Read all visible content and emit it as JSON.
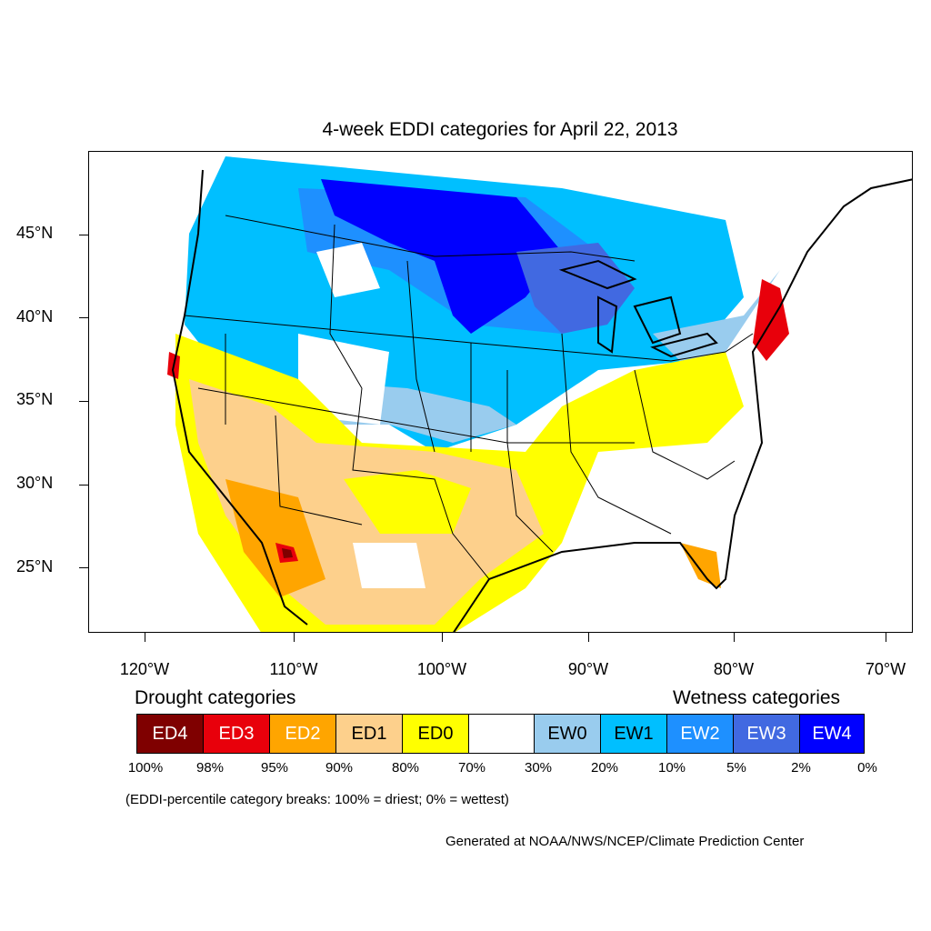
{
  "title": "4-week EDDI categories for April 22, 2013",
  "map": {
    "latitude_labels": [
      "45°N",
      "40°N",
      "35°N",
      "30°N",
      "25°N"
    ],
    "longitude_labels": [
      "120°W",
      "110°W",
      "100°W",
      "90°W",
      "80°W",
      "70°W"
    ]
  },
  "legend": {
    "drought_heading": "Drought categories",
    "wetness_heading": "Wetness categories",
    "categories": [
      {
        "label": "ED4",
        "color": "#7f0000",
        "text_color": "#ffffff"
      },
      {
        "label": "ED3",
        "color": "#e8000b",
        "text_color": "#ffffff"
      },
      {
        "label": "ED2",
        "color": "#ffa500",
        "text_color": "#ffffff"
      },
      {
        "label": "ED1",
        "color": "#fdd08c",
        "text_color": "#000000"
      },
      {
        "label": "ED0",
        "color": "#ffff00",
        "text_color": "#000000"
      },
      {
        "label": "",
        "color": "#ffffff",
        "text_color": "#000000"
      },
      {
        "label": "EW0",
        "color": "#99ccee",
        "text_color": "#000000"
      },
      {
        "label": "EW1",
        "color": "#00bfff",
        "text_color": "#000000"
      },
      {
        "label": "EW2",
        "color": "#1e90ff",
        "text_color": "#ffffff"
      },
      {
        "label": "EW3",
        "color": "#4169e1",
        "text_color": "#ffffff"
      },
      {
        "label": "EW4",
        "color": "#0000ff",
        "text_color": "#ffffff"
      }
    ],
    "percent_breaks": [
      "100%",
      "98%",
      "95%",
      "90%",
      "80%",
      "70%",
      "30%",
      "20%",
      "10%",
      "5%",
      "2%",
      "0%"
    ]
  },
  "note": "(EDDI-percentile category breaks: 100% = driest; 0% = wettest)",
  "credit": "Generated at NOAA/NWS/NCEP/Climate Prediction Center"
}
